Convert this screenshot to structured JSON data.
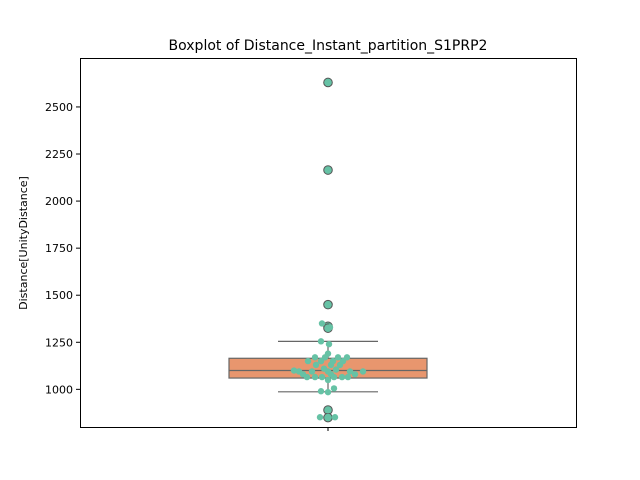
{
  "chart_data": {
    "type": "box",
    "title": "Boxplot of Distance_Instant_partition_S1PRP2",
    "xlabel": "",
    "ylabel": "Distance[UnityDistance]",
    "ylim": [
      800,
      2760
    ],
    "yticks": [
      1000,
      1250,
      1500,
      1750,
      2000,
      2250,
      2500
    ],
    "ytick_labels": [
      "1000",
      "1250",
      "1500",
      "1750",
      "2000",
      "2250",
      "2500"
    ],
    "box": {
      "q1": 1060,
      "median": 1100,
      "q3": 1165,
      "whisker_low": 987,
      "whisker_high": 1255,
      "outliers": [
        2630,
        2165,
        1450,
        1335,
        1325,
        890,
        850
      ]
    },
    "swarm_points": [
      {
        "y": 2630,
        "dx": 0
      },
      {
        "y": 2165,
        "dx": 0
      },
      {
        "y": 1450,
        "dx": 0
      },
      {
        "y": 1350,
        "dx": -6
      },
      {
        "y": 1330,
        "dx": 2
      },
      {
        "y": 1255,
        "dx": -7
      },
      {
        "y": 1240,
        "dx": 1
      },
      {
        "y": 1190,
        "dx": 0
      },
      {
        "y": 1170,
        "dx": -13
      },
      {
        "y": 1170,
        "dx": -3
      },
      {
        "y": 1170,
        "dx": 10
      },
      {
        "y": 1170,
        "dx": 19
      },
      {
        "y": 1150,
        "dx": -20
      },
      {
        "y": 1150,
        "dx": -7
      },
      {
        "y": 1150,
        "dx": 5
      },
      {
        "y": 1150,
        "dx": 15
      },
      {
        "y": 1130,
        "dx": -12
      },
      {
        "y": 1130,
        "dx": 3
      },
      {
        "y": 1130,
        "dx": 12
      },
      {
        "y": 1110,
        "dx": -4
      },
      {
        "y": 1105,
        "dx": 8
      },
      {
        "y": 1100,
        "dx": -34
      },
      {
        "y": 1095,
        "dx": -29
      },
      {
        "y": 1095,
        "dx": -16
      },
      {
        "y": 1095,
        "dx": 0
      },
      {
        "y": 1095,
        "dx": 22
      },
      {
        "y": 1095,
        "dx": 35
      },
      {
        "y": 1080,
        "dx": -25
      },
      {
        "y": 1080,
        "dx": 3
      },
      {
        "y": 1080,
        "dx": 27
      },
      {
        "y": 1065,
        "dx": -21
      },
      {
        "y": 1065,
        "dx": -13
      },
      {
        "y": 1065,
        "dx": -6
      },
      {
        "y": 1065,
        "dx": 6
      },
      {
        "y": 1065,
        "dx": 14
      },
      {
        "y": 1065,
        "dx": 20
      },
      {
        "y": 1050,
        "dx": 0
      },
      {
        "y": 1005,
        "dx": 6
      },
      {
        "y": 990,
        "dx": -7
      },
      {
        "y": 985,
        "dx": 0
      },
      {
        "y": 890,
        "dx": 0
      },
      {
        "y": 852,
        "dx": -8
      },
      {
        "y": 850,
        "dx": 0
      },
      {
        "y": 852,
        "dx": 7
      }
    ],
    "colors": {
      "box_fill": "#e8966e",
      "box_edge": "#666666",
      "point": "#66c2a5",
      "point_edge": "#4f8f7a"
    },
    "grid": false,
    "legend": "none"
  }
}
